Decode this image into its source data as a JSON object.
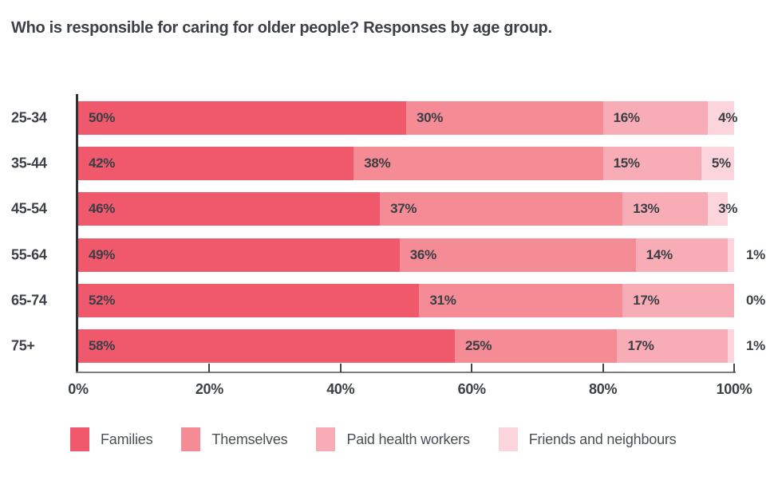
{
  "title": "Who is responsible for caring for older people? Responses by age group.",
  "colors": {
    "families": "#F0596C",
    "themselves": "#F48B95",
    "paid_health_workers": "#F8ADB6",
    "friends_and_neighbours": "#FBD5DB",
    "text_dark": "#3D4147",
    "axis_dark": "#2E3138",
    "axis_light": "#7C7E83"
  },
  "chart_data": {
    "type": "bar",
    "orientation": "horizontal",
    "stacked": true,
    "title": "Who is responsible for caring for older people? Responses by age group.",
    "categories": [
      "25-34",
      "35-44",
      "45-54",
      "55-64",
      "65-74",
      "75+"
    ],
    "series": [
      {
        "name": "Families",
        "color": "#F0596C",
        "values": [
          50,
          42,
          46,
          49,
          52,
          58
        ]
      },
      {
        "name": "Themselves",
        "color": "#F48B95",
        "values": [
          30,
          38,
          37,
          36,
          31,
          25
        ]
      },
      {
        "name": "Paid health workers",
        "color": "#F8ADB6",
        "values": [
          16,
          15,
          13,
          14,
          17,
          17
        ]
      },
      {
        "name": "Friends and neighbours",
        "color": "#FBD5DB",
        "values": [
          4,
          5,
          3,
          1,
          0,
          1
        ]
      }
    ],
    "value_label_suffix": "%",
    "x_ticks": [
      {
        "label": "0%",
        "position": 0
      },
      {
        "label": "20%",
        "position": 20
      },
      {
        "label": "40%",
        "position": 40
      },
      {
        "label": "60%",
        "position": 60
      },
      {
        "label": "80%",
        "position": 80
      },
      {
        "label": "100%",
        "position": 100
      }
    ],
    "xlim": [
      0,
      100
    ],
    "grid": false,
    "legend_position": "bottom"
  }
}
